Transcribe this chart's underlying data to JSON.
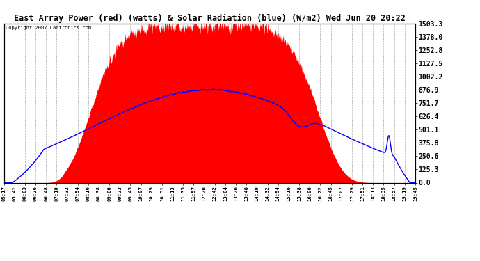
{
  "title": "East Array Power (red) (watts) & Solar Radiation (blue) (W/m2) Wed Jun 20 20:22",
  "copyright": "Copyright 2007 Cartronics.com",
  "background_color": "#ffffff",
  "plot_bg_color": "#ffffff",
  "red_color": "#ff0000",
  "blue_color": "#0000ff",
  "grid_color": "#aaaaaa",
  "ymax": 1503.3,
  "yticks": [
    0.0,
    125.3,
    250.6,
    375.8,
    501.1,
    626.4,
    751.7,
    876.9,
    1002.2,
    1127.5,
    1252.8,
    1378.0,
    1503.3
  ],
  "xtick_labels": [
    "05:17",
    "05:41",
    "06:03",
    "06:26",
    "06:48",
    "07:10",
    "07:32",
    "07:54",
    "08:16",
    "08:38",
    "09:00",
    "09:23",
    "09:45",
    "10:07",
    "10:29",
    "10:51",
    "11:13",
    "11:35",
    "11:57",
    "12:20",
    "12:42",
    "13:04",
    "13:26",
    "13:48",
    "14:10",
    "14:32",
    "14:54",
    "15:16",
    "15:38",
    "16:00",
    "16:22",
    "16:45",
    "17:07",
    "17:29",
    "17:51",
    "18:13",
    "18:35",
    "18:57",
    "19:19",
    "19:45"
  ]
}
